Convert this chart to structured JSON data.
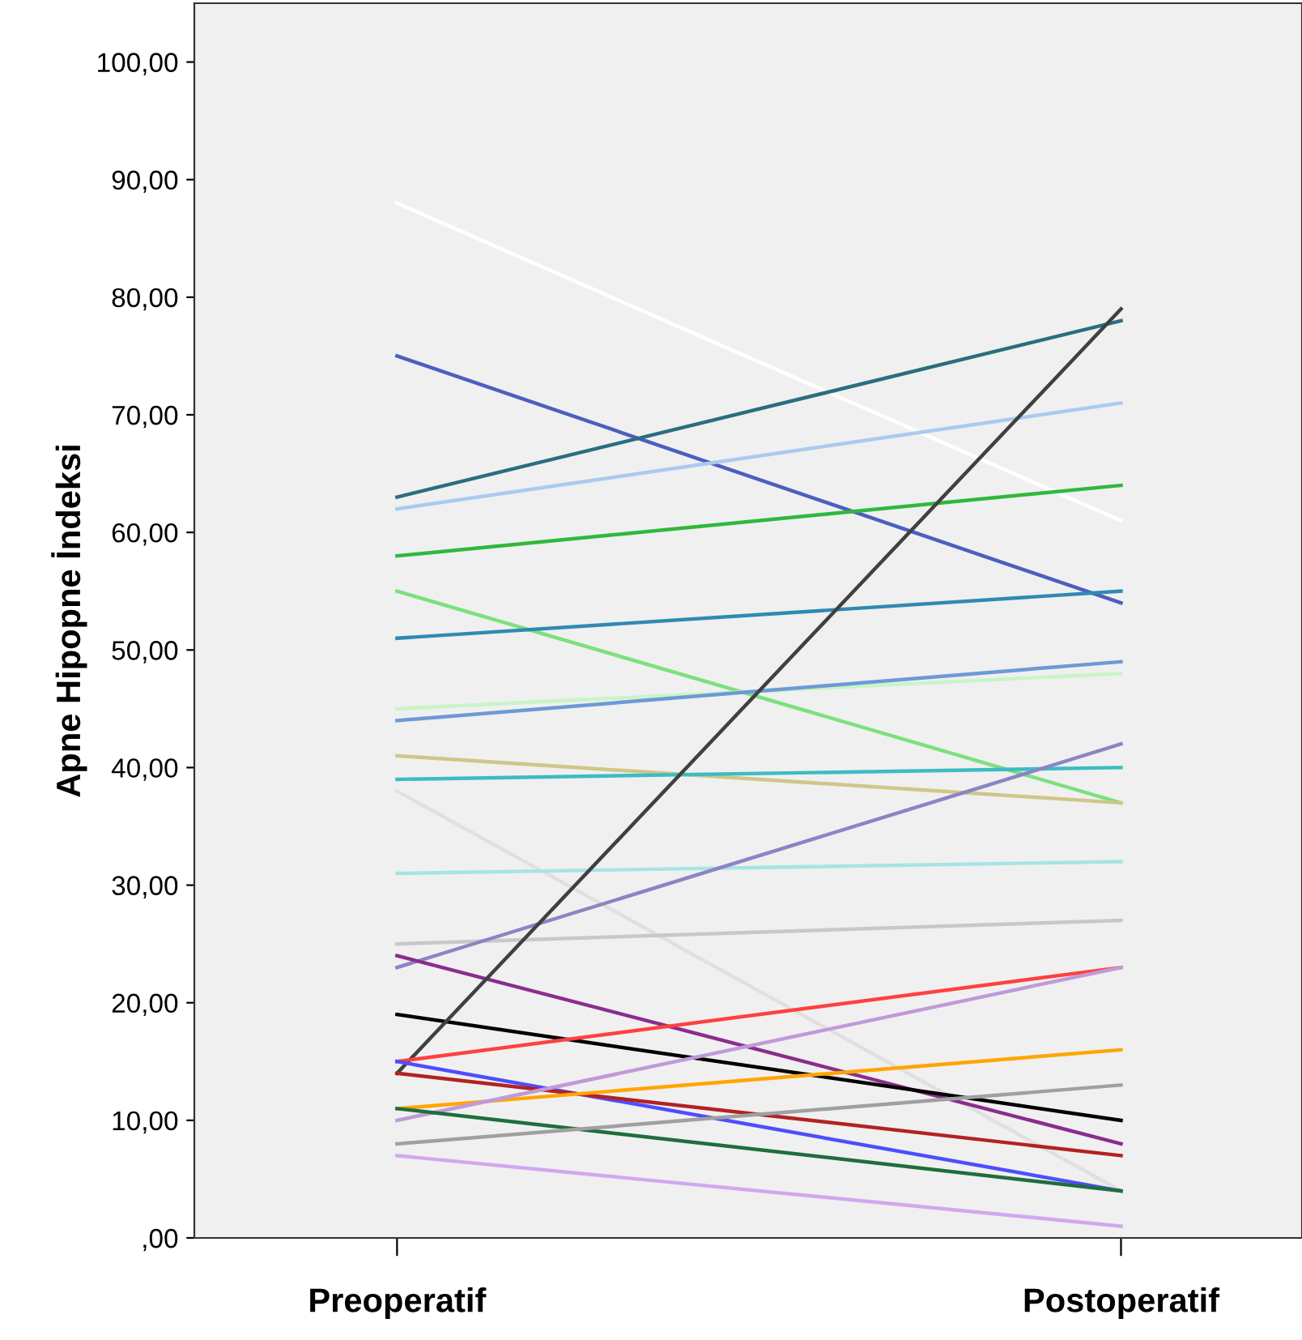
{
  "chart_data": {
    "type": "line",
    "ylabel": "Apne Hipopne İndeksi",
    "categories": [
      "Preoperatif",
      "Postoperatif"
    ],
    "ylim": [
      0,
      105
    ],
    "yticks": [
      {
        "value": 0,
        "label": ",00"
      },
      {
        "value": 10,
        "label": "10,00"
      },
      {
        "value": 20,
        "label": "20,00"
      },
      {
        "value": 30,
        "label": "30,00"
      },
      {
        "value": 40,
        "label": "40,00"
      },
      {
        "value": 50,
        "label": "50,00"
      },
      {
        "value": 60,
        "label": "60,00"
      },
      {
        "value": 70,
        "label": "70,00"
      },
      {
        "value": 80,
        "label": "80,00"
      },
      {
        "value": 90,
        "label": "90,00"
      },
      {
        "value": 100,
        "label": "100,00"
      }
    ],
    "grid": false,
    "marker": "none",
    "line_style": "solid",
    "series": [
      {
        "color": "#ffffff",
        "values": [
          88,
          61
        ]
      },
      {
        "color": "#4d5ec0",
        "values": [
          75,
          54
        ]
      },
      {
        "color": "#2a6e80",
        "values": [
          63,
          78
        ]
      },
      {
        "color": "#a9cbef",
        "values": [
          62,
          71
        ]
      },
      {
        "color": "#2fb83c",
        "values": [
          58,
          64
        ]
      },
      {
        "color": "#7ce07e",
        "values": [
          55,
          37
        ]
      },
      {
        "color": "#2f8ab2",
        "values": [
          51,
          55
        ]
      },
      {
        "color": "#c8f5c8",
        "values": [
          45,
          48
        ]
      },
      {
        "color": "#6c9ad6",
        "values": [
          44,
          49
        ]
      },
      {
        "color": "#cfc68a",
        "values": [
          41,
          37
        ]
      },
      {
        "color": "#3cbcc3",
        "values": [
          39,
          40
        ]
      },
      {
        "color": "#e0e0e0",
        "values": [
          38,
          4
        ]
      },
      {
        "color": "#a6e4e4",
        "values": [
          31,
          32
        ]
      },
      {
        "color": "#c8c8c8",
        "values": [
          25,
          27
        ]
      },
      {
        "color": "#8c84c4",
        "values": [
          23,
          42
        ]
      },
      {
        "color": "#8b2d8b",
        "values": [
          24,
          8
        ]
      },
      {
        "color": "#000000",
        "values": [
          19,
          10
        ]
      },
      {
        "color": "#404040",
        "values": [
          14,
          79
        ]
      },
      {
        "color": "#ff4040",
        "values": [
          15,
          23
        ]
      },
      {
        "color": "#4d4dff",
        "values": [
          15,
          4
        ]
      },
      {
        "color": "#b22222",
        "values": [
          14,
          7
        ]
      },
      {
        "color": "#ffa500",
        "values": [
          11,
          16
        ]
      },
      {
        "color": "#c09ad8",
        "values": [
          10,
          23
        ]
      },
      {
        "color": "#1e6e3c",
        "values": [
          11,
          4
        ]
      },
      {
        "color": "#a0a0a0",
        "values": [
          8,
          13
        ]
      },
      {
        "color": "#d0a8f0",
        "values": [
          7,
          1
        ]
      }
    ]
  }
}
